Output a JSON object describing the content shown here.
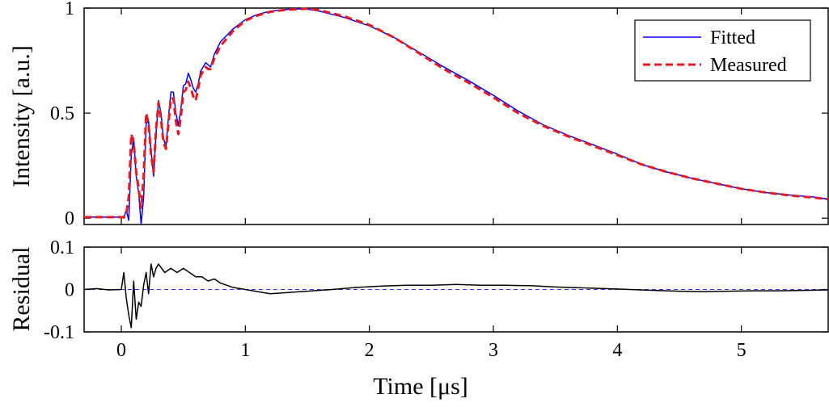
{
  "chart_data": [
    {
      "type": "line",
      "ylabel": "Intensity [a.u.]",
      "xlabel": "",
      "xlim": [
        -0.3,
        5.7
      ],
      "ylim": [
        -0.03,
        1.0
      ],
      "yticks": [
        0,
        0.5,
        1
      ],
      "ytick_labels": [
        "0",
        "0.5",
        "1"
      ],
      "grid": false,
      "legend": {
        "position": "top-right",
        "entries": [
          "Fitted",
          "Measured"
        ]
      },
      "series": [
        {
          "name": "Fitted",
          "color": "#0000ff",
          "style": "solid",
          "x": [
            -0.3,
            0.0,
            0.02,
            0.04,
            0.06,
            0.08,
            0.1,
            0.12,
            0.14,
            0.16,
            0.18,
            0.2,
            0.22,
            0.24,
            0.26,
            0.28,
            0.3,
            0.32,
            0.34,
            0.36,
            0.38,
            0.4,
            0.42,
            0.44,
            0.46,
            0.48,
            0.5,
            0.52,
            0.54,
            0.56,
            0.58,
            0.6,
            0.62,
            0.64,
            0.66,
            0.68,
            0.7,
            0.72,
            0.75,
            0.8,
            0.9,
            1.0,
            1.1,
            1.2,
            1.3,
            1.4,
            1.5,
            1.6,
            1.7,
            1.8,
            1.9,
            2.0,
            2.2,
            2.4,
            2.6,
            2.8,
            3.0,
            3.2,
            3.4,
            3.6,
            3.8,
            4.0,
            4.2,
            4.4,
            4.6,
            4.8,
            5.0,
            5.2,
            5.4,
            5.6,
            5.7
          ],
          "values": [
            0.005,
            0.005,
            0.0,
            0.04,
            -0.01,
            0.3,
            0.38,
            0.2,
            0.12,
            -0.03,
            0.1,
            0.45,
            0.46,
            0.32,
            0.2,
            0.4,
            0.56,
            0.5,
            0.38,
            0.34,
            0.48,
            0.6,
            0.6,
            0.5,
            0.44,
            0.52,
            0.63,
            0.64,
            0.69,
            0.66,
            0.62,
            0.6,
            0.64,
            0.7,
            0.72,
            0.74,
            0.73,
            0.72,
            0.78,
            0.84,
            0.9,
            0.945,
            0.97,
            0.985,
            0.992,
            0.996,
            0.995,
            0.985,
            0.97,
            0.955,
            0.935,
            0.915,
            0.86,
            0.79,
            0.72,
            0.655,
            0.585,
            0.51,
            0.445,
            0.395,
            0.35,
            0.305,
            0.255,
            0.22,
            0.19,
            0.165,
            0.14,
            0.122,
            0.11,
            0.1,
            0.09
          ]
        },
        {
          "name": "Measured",
          "color": "#e8191f",
          "style": "dashed",
          "x": [
            -0.3,
            0.0,
            0.02,
            0.04,
            0.06,
            0.08,
            0.1,
            0.12,
            0.14,
            0.16,
            0.18,
            0.2,
            0.22,
            0.24,
            0.26,
            0.28,
            0.3,
            0.32,
            0.34,
            0.36,
            0.38,
            0.4,
            0.42,
            0.44,
            0.46,
            0.48,
            0.5,
            0.52,
            0.54,
            0.56,
            0.58,
            0.6,
            0.62,
            0.64,
            0.66,
            0.68,
            0.7,
            0.72,
            0.75,
            0.8,
            0.9,
            1.0,
            1.1,
            1.2,
            1.3,
            1.4,
            1.5,
            1.6,
            1.7,
            1.8,
            1.9,
            2.0,
            2.2,
            2.4,
            2.6,
            2.8,
            3.0,
            3.2,
            3.4,
            3.6,
            3.8,
            4.0,
            4.2,
            4.4,
            4.6,
            4.8,
            5.0,
            5.2,
            5.4,
            5.6,
            5.7
          ],
          "values": [
            0.005,
            0.005,
            0.005,
            0.02,
            0.1,
            0.4,
            0.36,
            0.22,
            0.14,
            0.05,
            0.2,
            0.5,
            0.45,
            0.3,
            0.22,
            0.42,
            0.55,
            0.47,
            0.36,
            0.33,
            0.45,
            0.57,
            0.57,
            0.46,
            0.4,
            0.48,
            0.6,
            0.61,
            0.65,
            0.62,
            0.58,
            0.56,
            0.62,
            0.68,
            0.7,
            0.72,
            0.71,
            0.71,
            0.76,
            0.82,
            0.89,
            0.94,
            0.965,
            0.982,
            0.99,
            0.994,
            0.997,
            0.99,
            0.975,
            0.96,
            0.94,
            0.92,
            0.86,
            0.785,
            0.71,
            0.645,
            0.575,
            0.5,
            0.44,
            0.39,
            0.345,
            0.3,
            0.255,
            0.22,
            0.19,
            0.165,
            0.14,
            0.122,
            0.108,
            0.097,
            0.09
          ]
        }
      ]
    },
    {
      "type": "line",
      "ylabel": "Residual",
      "xlabel": "Time [μs]",
      "xlim": [
        -0.3,
        5.7
      ],
      "ylim": [
        -0.1,
        0.1
      ],
      "xticks": [
        0,
        1,
        2,
        3,
        4,
        5
      ],
      "xtick_labels": [
        "0",
        "1",
        "2",
        "3",
        "4",
        "5"
      ],
      "yticks": [
        -0.1,
        0,
        0.1
      ],
      "ytick_labels": [
        "-0.1",
        "0",
        "0.1"
      ],
      "grid": false,
      "series": [
        {
          "color": "#000000",
          "style": "solid",
          "x": [
            -0.3,
            -0.2,
            -0.1,
            0.0,
            0.02,
            0.04,
            0.06,
            0.08,
            0.1,
            0.12,
            0.14,
            0.16,
            0.18,
            0.2,
            0.22,
            0.24,
            0.26,
            0.28,
            0.3,
            0.35,
            0.4,
            0.45,
            0.5,
            0.55,
            0.6,
            0.65,
            0.7,
            0.75,
            0.8,
            0.9,
            1.0,
            1.1,
            1.2,
            1.3,
            1.4,
            1.5,
            1.7,
            1.9,
            2.1,
            2.3,
            2.5,
            2.7,
            2.9,
            3.1,
            3.3,
            3.5,
            3.7,
            3.9,
            4.1,
            4.3,
            4.5,
            4.7,
            4.9,
            5.1,
            5.3,
            5.5,
            5.7
          ],
          "values": [
            0.0,
            0.002,
            -0.001,
            0.0,
            0.04,
            -0.02,
            -0.06,
            -0.09,
            0.02,
            -0.07,
            -0.03,
            -0.04,
            0.01,
            0.04,
            -0.01,
            0.06,
            0.03,
            0.05,
            0.06,
            0.04,
            0.05,
            0.04,
            0.05,
            0.04,
            0.03,
            0.03,
            0.02,
            0.025,
            0.015,
            0.005,
            0.0,
            -0.005,
            -0.01,
            -0.008,
            -0.006,
            -0.004,
            0.0,
            0.005,
            0.008,
            0.01,
            0.01,
            0.012,
            0.01,
            0.01,
            0.009,
            0.006,
            0.004,
            0.002,
            0.0,
            -0.002,
            -0.004,
            -0.005,
            -0.004,
            -0.003,
            -0.003,
            -0.002,
            -0.001
          ]
        }
      ],
      "reference_line": {
        "y": 0,
        "color": "#3333ff",
        "style": "dashed"
      }
    }
  ]
}
